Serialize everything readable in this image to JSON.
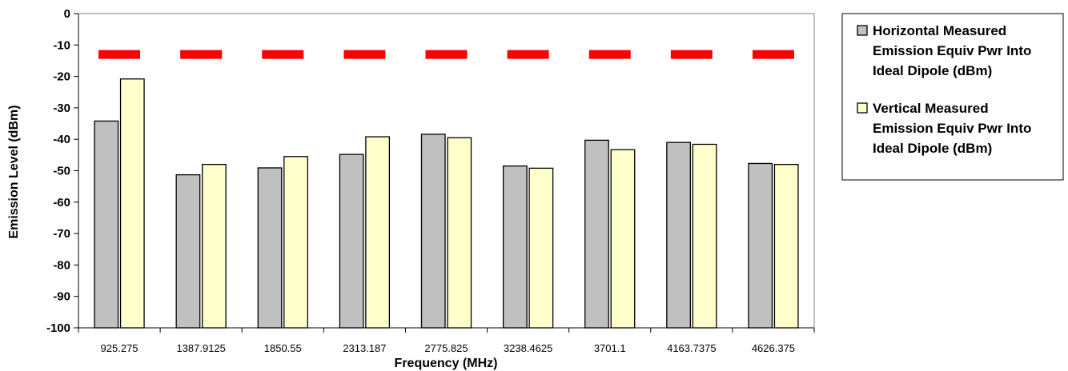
{
  "chart_data": {
    "type": "bar",
    "title": "",
    "xlabel": "Frequency (MHz)",
    "ylabel": "Emission Level (dBm)",
    "ylim": [
      -100,
      0
    ],
    "yticks": [
      0,
      -10,
      -20,
      -30,
      -40,
      -50,
      -60,
      -70,
      -80,
      -90,
      -100
    ],
    "grid": false,
    "legend_position": "right",
    "categories": [
      "925.275",
      "1387.9125",
      "1850.55",
      "2313.187",
      "2775.825",
      "3238.4625",
      "3701.1",
      "4163.7375",
      "4626.375"
    ],
    "series": [
      {
        "name_lines": [
          "Horizontal Measured",
          "Emission Equiv Pwr Into",
          "Ideal Dipole (dBm)"
        ],
        "color": "#c0c0c0",
        "values": [
          -34.2,
          -51.3,
          -49.1,
          -44.8,
          -38.4,
          -48.5,
          -40.3,
          -41.0,
          -47.7
        ]
      },
      {
        "name_lines": [
          "Vertical Measured",
          "Emission Equiv Pwr Into",
          "Ideal Dipole (dBm)"
        ],
        "color": "#ffffcc",
        "values": [
          -20.8,
          -48.0,
          -45.5,
          -39.2,
          -39.5,
          -49.2,
          -43.3,
          -41.6,
          -48.0
        ]
      }
    ],
    "limit_line": {
      "value": -13,
      "color": "#ff0000"
    }
  }
}
